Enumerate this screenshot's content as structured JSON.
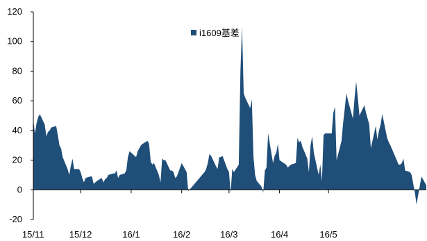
{
  "chart_data": {
    "type": "area",
    "title": "",
    "xlabel": "",
    "ylabel": "",
    "ylim": [
      -20,
      120
    ],
    "y_ticks": [
      -20,
      0,
      20,
      40,
      60,
      80,
      100,
      120
    ],
    "x_ticks": [
      "15/11",
      "15/12",
      "16/1",
      "16/2",
      "16/3",
      "16/4",
      "16/5"
    ],
    "grid": false,
    "legend_position": "top-center",
    "series": [
      {
        "name": "i1609基差",
        "color": "#1f4e79",
        "points": [
          [
            "2015-11-02",
            47
          ],
          [
            "2015-11-03",
            38
          ],
          [
            "2015-11-04",
            45
          ],
          [
            "2015-11-05",
            49
          ],
          [
            "2015-11-06",
            51
          ],
          [
            "2015-11-09",
            44
          ],
          [
            "2015-11-10",
            36
          ],
          [
            "2015-11-11",
            39
          ],
          [
            "2015-11-12",
            40
          ],
          [
            "2015-11-13",
            42
          ],
          [
            "2015-11-16",
            43
          ],
          [
            "2015-11-17",
            37
          ],
          [
            "2015-11-18",
            30
          ],
          [
            "2015-11-19",
            28
          ],
          [
            "2015-11-20",
            22
          ],
          [
            "2015-11-23",
            14
          ],
          [
            "2015-11-24",
            10
          ],
          [
            "2015-11-25",
            16
          ],
          [
            "2015-11-26",
            21
          ],
          [
            "2015-11-27",
            14
          ],
          [
            "2015-11-30",
            14
          ],
          [
            "2015-12-01",
            12
          ],
          [
            "2015-12-02",
            8
          ],
          [
            "2015-12-03",
            5
          ],
          [
            "2015-12-04",
            8
          ],
          [
            "2015-12-07",
            9
          ],
          [
            "2015-12-08",
            9
          ],
          [
            "2015-12-09",
            4
          ],
          [
            "2015-12-10",
            5
          ],
          [
            "2015-12-11",
            6
          ],
          [
            "2015-12-14",
            8
          ],
          [
            "2015-12-15",
            5
          ],
          [
            "2015-12-16",
            7
          ],
          [
            "2015-12-17",
            8
          ],
          [
            "2015-12-18",
            10
          ],
          [
            "2015-12-21",
            11
          ],
          [
            "2015-12-22",
            11
          ],
          [
            "2015-12-23",
            13
          ],
          [
            "2015-12-24",
            8
          ],
          [
            "2015-12-25",
            10
          ],
          [
            "2015-12-28",
            11
          ],
          [
            "2015-12-29",
            13
          ],
          [
            "2015-12-30",
            22
          ],
          [
            "2015-12-31",
            26
          ],
          [
            "2016-01-04",
            22
          ],
          [
            "2016-01-05",
            26
          ],
          [
            "2016-01-06",
            28
          ],
          [
            "2016-01-07",
            30
          ],
          [
            "2016-01-08",
            31
          ],
          [
            "2016-01-11",
            33
          ],
          [
            "2016-01-12",
            31
          ],
          [
            "2016-01-13",
            19
          ],
          [
            "2016-01-14",
            17
          ],
          [
            "2016-01-15",
            18
          ],
          [
            "2016-01-18",
            10
          ],
          [
            "2016-01-19",
            5
          ],
          [
            "2016-01-20",
            21
          ],
          [
            "2016-01-21",
            20
          ],
          [
            "2016-01-22",
            20
          ],
          [
            "2016-01-25",
            13
          ],
          [
            "2016-01-26",
            13
          ],
          [
            "2016-01-27",
            12
          ],
          [
            "2016-01-28",
            8
          ],
          [
            "2016-01-29",
            9
          ],
          [
            "2016-02-01",
            18
          ],
          [
            "2016-02-02",
            16
          ],
          [
            "2016-02-03",
            14
          ],
          [
            "2016-02-04",
            12
          ],
          [
            "2016-02-05",
            -1
          ],
          [
            "2016-02-15",
            12
          ],
          [
            "2016-02-16",
            14
          ],
          [
            "2016-02-17",
            18
          ],
          [
            "2016-02-18",
            24
          ],
          [
            "2016-02-19",
            23
          ],
          [
            "2016-02-22",
            16
          ],
          [
            "2016-02-23",
            14
          ],
          [
            "2016-02-24",
            22
          ],
          [
            "2016-02-25",
            22
          ],
          [
            "2016-02-26",
            23
          ],
          [
            "2016-02-29",
            14
          ],
          [
            "2016-03-01",
            12
          ],
          [
            "2016-03-02",
            -2
          ],
          [
            "2016-03-03",
            14
          ],
          [
            "2016-03-04",
            12
          ],
          [
            "2016-03-07",
            17
          ],
          [
            "2016-03-08",
            80
          ],
          [
            "2016-03-09",
            110
          ],
          [
            "2016-03-10",
            65
          ],
          [
            "2016-03-11",
            62
          ],
          [
            "2016-03-14",
            55
          ],
          [
            "2016-03-15",
            61
          ],
          [
            "2016-03-16",
            22
          ],
          [
            "2016-03-17",
            10
          ],
          [
            "2016-03-18",
            6
          ],
          [
            "2016-03-21",
            2
          ],
          [
            "2016-03-22",
            -2
          ],
          [
            "2016-03-23",
            13
          ],
          [
            "2016-03-24",
            15
          ],
          [
            "2016-03-25",
            38
          ],
          [
            "2016-03-28",
            18
          ],
          [
            "2016-03-29",
            23
          ],
          [
            "2016-03-30",
            25
          ],
          [
            "2016-03-31",
            31
          ],
          [
            "2016-04-01",
            20
          ],
          [
            "2016-04-05",
            17
          ],
          [
            "2016-04-06",
            15
          ],
          [
            "2016-04-07",
            16
          ],
          [
            "2016-04-08",
            17
          ],
          [
            "2016-04-11",
            18
          ],
          [
            "2016-04-12",
            35
          ],
          [
            "2016-04-13",
            32
          ],
          [
            "2016-04-14",
            33
          ],
          [
            "2016-04-15",
            29
          ],
          [
            "2016-04-18",
            21
          ],
          [
            "2016-04-19",
            12
          ],
          [
            "2016-04-20",
            30
          ],
          [
            "2016-04-21",
            36
          ],
          [
            "2016-04-22",
            25
          ],
          [
            "2016-04-25",
            10
          ],
          [
            "2016-04-26",
            17
          ],
          [
            "2016-04-27",
            6
          ],
          [
            "2016-04-28",
            37
          ],
          [
            "2016-04-29",
            38
          ],
          [
            "2016-05-03",
            38
          ],
          [
            "2016-05-04",
            52
          ],
          [
            "2016-05-05",
            56
          ],
          [
            "2016-05-06",
            20
          ],
          [
            "2016-05-09",
            33
          ],
          [
            "2016-05-10",
            45
          ],
          [
            "2016-05-11",
            55
          ],
          [
            "2016-05-12",
            65
          ],
          [
            "2016-05-13",
            60
          ],
          [
            "2016-05-16",
            48
          ],
          [
            "2016-05-17",
            62
          ],
          [
            "2016-05-18",
            73
          ],
          [
            "2016-05-19",
            62
          ],
          [
            "2016-05-20",
            50
          ],
          [
            "2016-05-23",
            57
          ],
          [
            "2016-05-24",
            52
          ],
          [
            "2016-05-25",
            48
          ],
          [
            "2016-05-26",
            44
          ],
          [
            "2016-05-27",
            28
          ],
          [
            "2016-05-30",
            43
          ],
          [
            "2016-05-31",
            34
          ],
          [
            "2016-06-01",
            40
          ],
          [
            "2016-06-02",
            44
          ],
          [
            "2016-06-03",
            51
          ],
          [
            "2016-06-06",
            35
          ],
          [
            "2016-06-07",
            32
          ],
          [
            "2016-06-08",
            30
          ],
          [
            "2016-06-13",
            17
          ],
          [
            "2016-06-14",
            17
          ],
          [
            "2016-06-15",
            18
          ],
          [
            "2016-06-16",
            21
          ],
          [
            "2016-06-17",
            13
          ],
          [
            "2016-06-20",
            12
          ],
          [
            "2016-06-21",
            10
          ],
          [
            "2016-06-22",
            4
          ],
          [
            "2016-06-23",
            -2
          ],
          [
            "2016-06-24",
            -10
          ],
          [
            "2016-06-27",
            9
          ],
          [
            "2016-06-28",
            7
          ],
          [
            "2016-06-29",
            5
          ],
          [
            "2016-06-30",
            3
          ]
        ]
      }
    ]
  }
}
